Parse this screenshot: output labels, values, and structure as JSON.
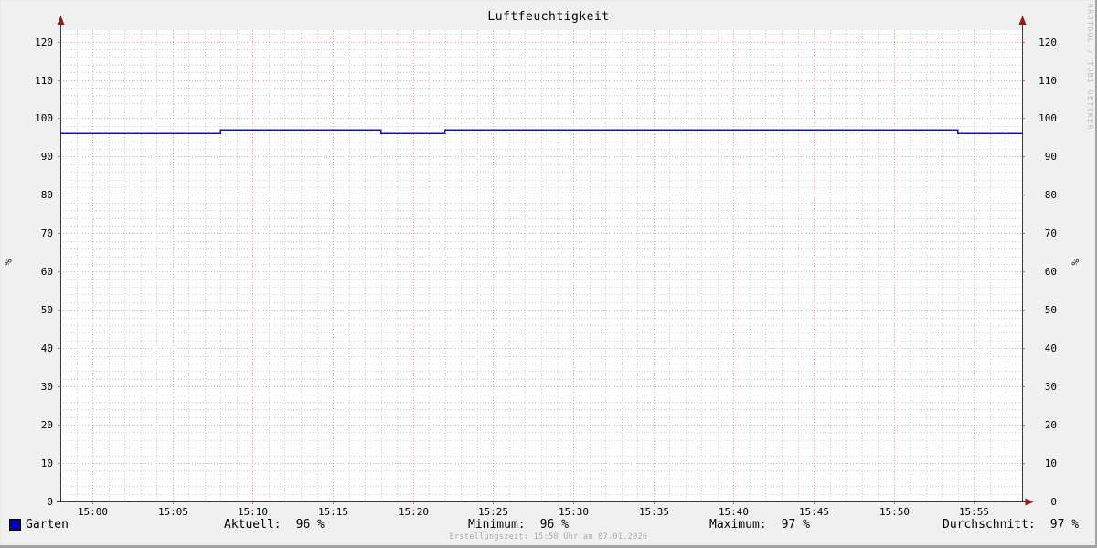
{
  "chart_data": {
    "type": "line",
    "title": "Luftfeuchtigkeit",
    "unit_label": "%",
    "watermark": "RRDTOOL / TOBI OETIKER",
    "xlim_minutes": [
      0,
      60
    ],
    "ylim": [
      0,
      123
    ],
    "y_ticks": [
      0,
      10,
      20,
      30,
      40,
      50,
      60,
      70,
      80,
      90,
      100,
      110,
      120
    ],
    "y_minor_step": 2,
    "x_minor_step_min": 1,
    "x_ticks": [
      {
        "offset_min": 2,
        "label": "15:00"
      },
      {
        "offset_min": 7,
        "label": "15:05"
      },
      {
        "offset_min": 12,
        "label": "15:10"
      },
      {
        "offset_min": 17,
        "label": "15:15"
      },
      {
        "offset_min": 22,
        "label": "15:20"
      },
      {
        "offset_min": 27,
        "label": "15:25"
      },
      {
        "offset_min": 32,
        "label": "15:30"
      },
      {
        "offset_min": 37,
        "label": "15:35"
      },
      {
        "offset_min": 42,
        "label": "15:40"
      },
      {
        "offset_min": 47,
        "label": "15:45"
      },
      {
        "offset_min": 52,
        "label": "15:50"
      },
      {
        "offset_min": 57,
        "label": "15:55"
      }
    ],
    "series": [
      {
        "name": "Garten",
        "color": "#1515b0",
        "unit": "%",
        "points_min_value": [
          [
            0,
            96
          ],
          [
            10,
            96
          ],
          [
            10,
            97
          ],
          [
            20,
            97
          ],
          [
            20,
            96
          ],
          [
            24,
            96
          ],
          [
            24,
            97
          ],
          [
            56,
            97
          ],
          [
            56,
            96
          ],
          [
            60,
            96
          ]
        ]
      }
    ],
    "legend_stats": [
      {
        "label": "Aktuell:",
        "value": "96 %"
      },
      {
        "label": "Minimum:",
        "value": "96 %"
      },
      {
        "label": "Maximum:",
        "value": "97 %"
      },
      {
        "label": "Durchschnitt:",
        "value": "97 %"
      }
    ],
    "footer": "Erstellungszeit: 15:58 Uhr am 07.01.2026",
    "colors": {
      "background": "#f0f0f0",
      "canvas": "#ffffff",
      "minor_grid": "#cdcdcd",
      "major_grid": "#efa2a2",
      "axis": "#383838",
      "arrow": "#8f1d1d",
      "tick": "#d96a6a",
      "legend_square": "#0000b8"
    }
  }
}
